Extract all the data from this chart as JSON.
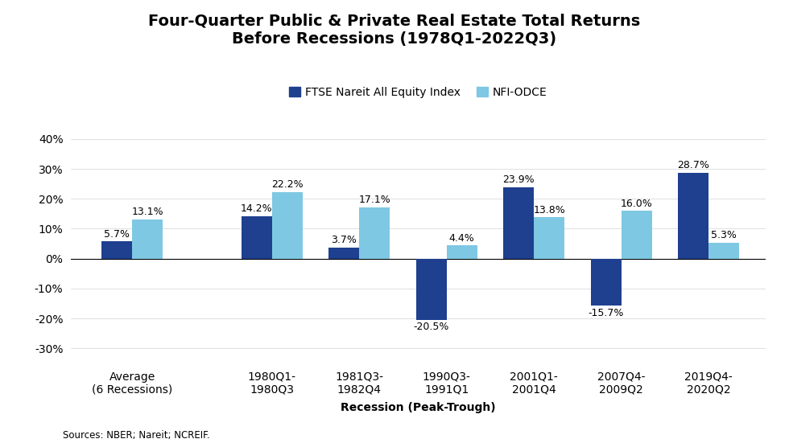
{
  "title": "Four-Quarter Public & Private Real Estate Total Returns\nBefore Recessions (1978Q1-2022Q3)",
  "xlabel": "Recession (Peak-Trough)",
  "categories": [
    "Average\n(6 Recessions)",
    "1980Q1-\n1980Q3",
    "1981Q3-\n1982Q4",
    "1990Q3-\n1991Q1",
    "2001Q1-\n2001Q4",
    "2007Q4-\n2009Q2",
    "2019Q4-\n2020Q2"
  ],
  "ftse_values": [
    5.7,
    14.2,
    3.7,
    -20.5,
    23.9,
    -15.7,
    28.7
  ],
  "nfi_values": [
    13.1,
    22.2,
    17.1,
    4.4,
    13.8,
    16.0,
    5.3
  ],
  "ftse_color": "#1F3F8F",
  "nfi_color": "#7EC8E3",
  "bar_width": 0.35,
  "ylim": [
    -35,
    45
  ],
  "yticks": [
    -30,
    -20,
    -10,
    0,
    10,
    20,
    30,
    40
  ],
  "ytick_labels": [
    "-30%",
    "-20%",
    "-10%",
    "0%",
    "10%",
    "20%",
    "30%",
    "40%"
  ],
  "legend_ftse": "FTSE Nareit All Equity Index",
  "legend_nfi": "NFI-ODCE",
  "source_text": "Sources: NBER; Nareit; NCREIF.",
  "title_fontsize": 14,
  "label_fontsize": 10,
  "tick_fontsize": 10,
  "annotation_fontsize": 9,
  "background_color": "#ffffff"
}
